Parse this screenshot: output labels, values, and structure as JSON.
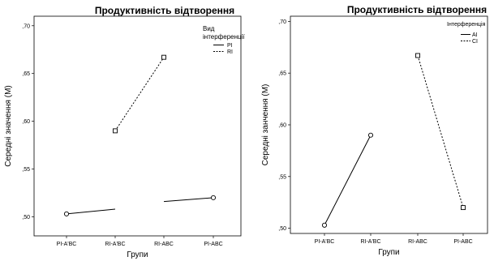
{
  "chart_data": [
    {
      "type": "line",
      "title": "Продуктивність відтворення",
      "xlabel": "Групи",
      "ylabel": "Середні значення (М)",
      "categories": [
        "PI-A'BC",
        "RI-A'BC",
        "RI-ABC",
        "PI-ABC"
      ],
      "ylim": [
        0.48,
        0.71
      ],
      "yticks": [
        ",50",
        ",55",
        ",60",
        ",65",
        ",70"
      ],
      "legend_title": "Вид інтерференції",
      "legend_position": "top-right",
      "grid": false,
      "series": [
        {
          "name": "PI",
          "style": "solid",
          "marker": "circle",
          "segments": [
            [
              {
                "x": 0,
                "y": 0.503,
                "marker": true
              },
              {
                "x": 1,
                "y": 0.508,
                "marker": false
              }
            ],
            [
              {
                "x": 2,
                "y": 0.516,
                "marker": false
              },
              {
                "x": 3,
                "y": 0.52,
                "marker": true
              }
            ]
          ]
        },
        {
          "name": "RI",
          "style": "dashed",
          "marker": "square",
          "segments": [
            [
              {
                "x": 1,
                "y": 0.59,
                "marker": true
              },
              {
                "x": 2,
                "y": 0.667,
                "marker": true
              }
            ]
          ]
        }
      ]
    },
    {
      "type": "line",
      "title": "Продуктивність відтворення",
      "xlabel": "Групи",
      "ylabel": "Середні занчення (М)",
      "categories": [
        "PI-A'BC",
        "RI-A'BC",
        "RI-ABC",
        "PI-ABC"
      ],
      "ylim": [
        0.495,
        0.705
      ],
      "yticks": [
        ",50",
        ",55",
        ",60",
        ",65",
        ",70"
      ],
      "legend_title": "Інтерференція",
      "legend_position": "top-right",
      "grid": false,
      "series": [
        {
          "name": "AI",
          "style": "solid",
          "marker": "circle",
          "segments": [
            [
              {
                "x": 0,
                "y": 0.503,
                "marker": true
              },
              {
                "x": 1,
                "y": 0.59,
                "marker": true
              }
            ]
          ]
        },
        {
          "name": "CI",
          "style": "dashed",
          "marker": "square",
          "segments": [
            [
              {
                "x": 2,
                "y": 0.667,
                "marker": true
              },
              {
                "x": 3,
                "y": 0.52,
                "marker": true
              }
            ]
          ]
        }
      ]
    }
  ]
}
